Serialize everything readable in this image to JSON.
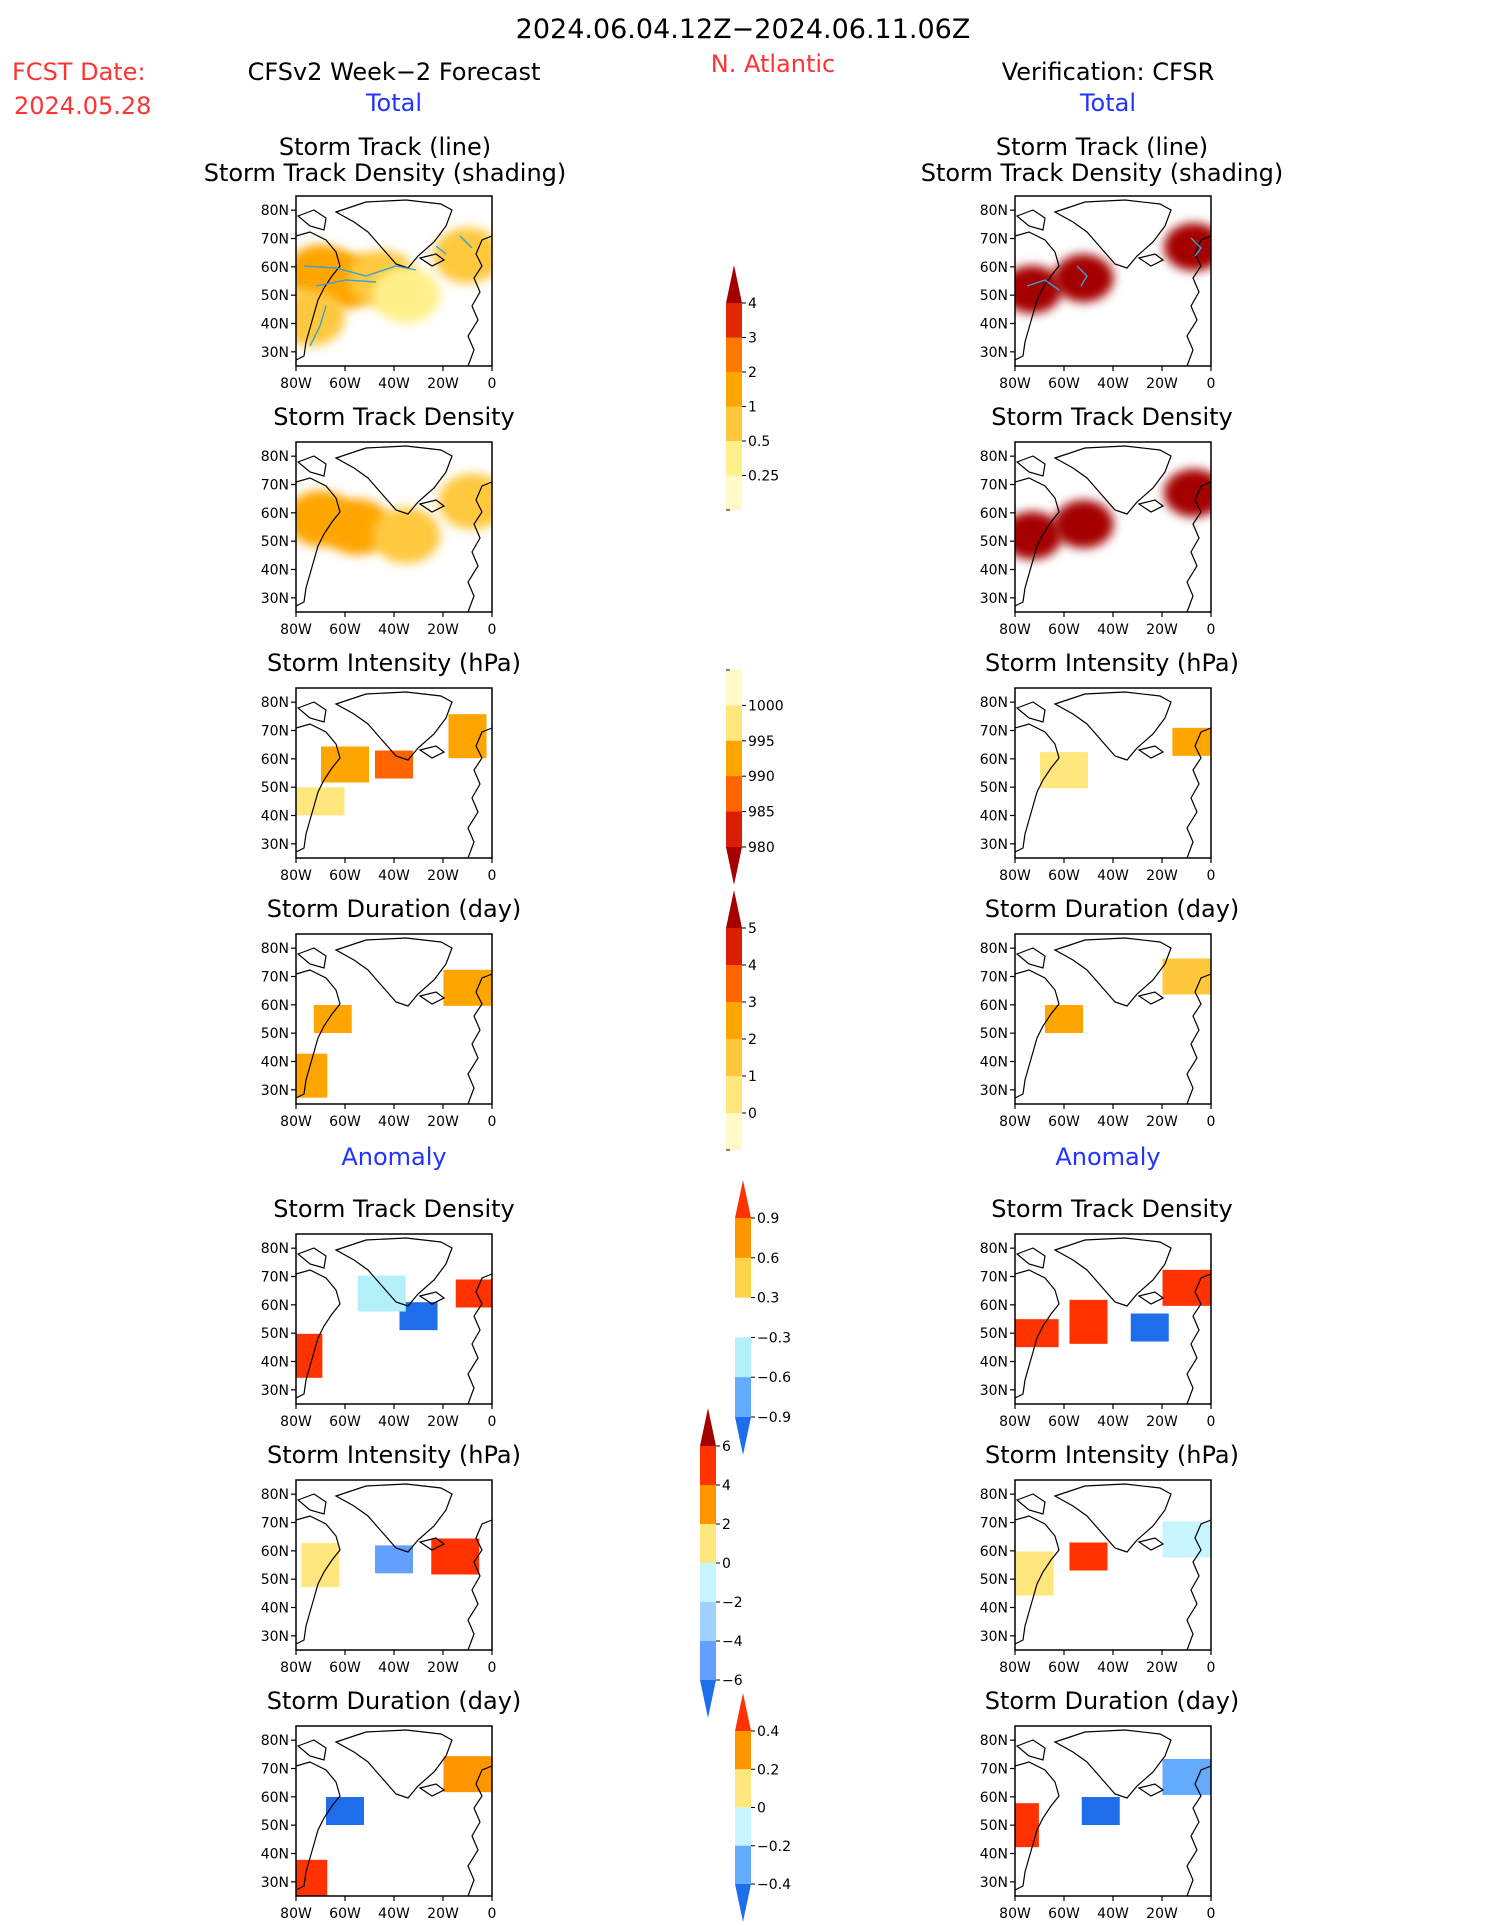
{
  "header": {
    "date_range": "2024.06.04.12Z−2024.06.11.06Z",
    "fcst_label": "FCST Date:",
    "fcst_date": "2024.05.28",
    "left_title": "CFSv2 Week−2 Forecast",
    "region": "N. Atlantic",
    "right_title": "Verification: CFSR",
    "total_label": "Total",
    "anomaly_label": "Anomaly"
  },
  "panel_titles": {
    "track_line": "Storm Track (line)",
    "track_shading": "Storm Track Density (shading)",
    "density": "Storm Track Density",
    "intensity": "Storm Intensity (hPa)",
    "duration": "Storm Duration (day)"
  },
  "axes": {
    "lat_ticks": [
      "80N",
      "70N",
      "60N",
      "50N",
      "40N",
      "30N"
    ],
    "lon_ticks": [
      "80W",
      "60W",
      "40W",
      "20W",
      "0"
    ]
  },
  "colorbars": [
    {
      "id": "density_total",
      "labels": [
        "4",
        "3",
        "2",
        "1",
        "0.5",
        "0.25"
      ],
      "colors": [
        "#a50000",
        "#e12800",
        "#ff7800",
        "#ffa500",
        "#ffc83c",
        "#fff08c",
        "#fffac8"
      ]
    },
    {
      "id": "intensity_total",
      "labels": [
        "1000",
        "995",
        "990",
        "985",
        "980"
      ],
      "colors": [
        "#fffac8",
        "#ffe67d",
        "#ffa500",
        "#ff6400",
        "#dc1e00",
        "#a50000"
      ]
    },
    {
      "id": "duration_total",
      "labels": [
        "5",
        "4",
        "3",
        "2",
        "1",
        "0"
      ],
      "colors": [
        "#a50000",
        "#dc1e00",
        "#ff6400",
        "#ffa500",
        "#ffc83c",
        "#ffe67d",
        "#fffac8"
      ]
    },
    {
      "id": "density_anom",
      "labels": [
        "0.9",
        "0.6",
        "0.3",
        "−0.3",
        "−0.6",
        "−0.9"
      ],
      "colors": [
        "#ff3200",
        "#ff9600",
        "#ffd24b",
        "#ffffff",
        "#b4f0fa",
        "#64aaff",
        "#1e6eeb"
      ]
    },
    {
      "id": "intensity_anom",
      "labels": [
        "6",
        "4",
        "2",
        "0",
        "−2",
        "−4",
        "−6"
      ],
      "colors": [
        "#a50000",
        "#ff3200",
        "#ff9600",
        "#ffe67d",
        "#c8f5ff",
        "#a0d2ff",
        "#64a0ff",
        "#1e6eeb"
      ]
    },
    {
      "id": "duration_anom",
      "labels": [
        "0.4",
        "0.2",
        "0",
        "−0.2",
        "−0.4"
      ],
      "colors": [
        "#ff3200",
        "#ff9600",
        "#ffe67d",
        "#c8f5ff",
        "#64aaff",
        "#1e6eeb"
      ]
    }
  ],
  "chart_data": [
    {
      "type": "heatmap",
      "id": "fcst_track",
      "title": "Storm Track (line) / Storm Track Density (shading)",
      "xlim": [
        -80,
        0
      ],
      "ylim": [
        25,
        85
      ],
      "regions": [
        {
          "lon": -70,
          "lat": 58,
          "value": 1.2
        },
        {
          "lon": -60,
          "lat": 55,
          "value": 1.0
        },
        {
          "lon": -45,
          "lat": 56,
          "value": 0.6
        },
        {
          "lon": -35,
          "lat": 50,
          "value": 0.4
        },
        {
          "lon": -10,
          "lat": 64,
          "value": 0.8
        },
        {
          "lon": -74,
          "lat": 42,
          "value": 0.9
        }
      ]
    },
    {
      "type": "heatmap",
      "id": "cfsr_track",
      "title": "Storm Track (line) / Storm Track Density (shading)",
      "xlim": [
        -80,
        0
      ],
      "ylim": [
        25,
        85
      ],
      "regions": [
        {
          "lon": -73,
          "lat": 52,
          "value": 4.5
        },
        {
          "lon": -52,
          "lat": 56,
          "value": 4.5
        },
        {
          "lon": -7,
          "lat": 67,
          "value": 4.5
        }
      ]
    },
    {
      "type": "heatmap",
      "id": "fcst_density",
      "title": "Storm Track Density",
      "xlim": [
        -80,
        0
      ],
      "ylim": [
        25,
        85
      ],
      "regions": [
        {
          "lon": -70,
          "lat": 58,
          "value": 1.2
        },
        {
          "lon": -55,
          "lat": 55,
          "value": 1.0
        },
        {
          "lon": -35,
          "lat": 52,
          "value": 0.6
        },
        {
          "lon": -8,
          "lat": 64,
          "value": 0.7
        }
      ]
    },
    {
      "type": "heatmap",
      "id": "cfsr_density",
      "title": "Storm Track Density",
      "xlim": [
        -80,
        0
      ],
      "ylim": [
        25,
        85
      ],
      "regions": [
        {
          "lon": -73,
          "lat": 52,
          "value": 4.5
        },
        {
          "lon": -52,
          "lat": 56,
          "value": 4.5
        },
        {
          "lon": -7,
          "lat": 67,
          "value": 4.5
        }
      ]
    },
    {
      "type": "heatmap",
      "id": "fcst_intensity",
      "title": "Storm Intensity (hPa)",
      "xlim": [
        -80,
        0
      ],
      "ylim": [
        25,
        85
      ],
      "regions": [
        {
          "lon": -40,
          "lat": 58,
          "value": 987
        },
        {
          "lon": -60,
          "lat": 58,
          "value": 993
        },
        {
          "lon": -10,
          "lat": 68,
          "value": 993
        },
        {
          "lon": -70,
          "lat": 45,
          "value": 998
        }
      ]
    },
    {
      "type": "heatmap",
      "id": "cfsr_intensity",
      "title": "Storm Intensity (hPa)",
      "xlim": [
        -80,
        0
      ],
      "ylim": [
        25,
        85
      ],
      "regions": [
        {
          "lon": -8,
          "lat": 66,
          "value": 993
        },
        {
          "lon": -60,
          "lat": 56,
          "value": 998
        }
      ]
    },
    {
      "type": "heatmap",
      "id": "fcst_duration",
      "title": "Storm Duration (day)",
      "xlim": [
        -80,
        0
      ],
      "ylim": [
        25,
        85
      ],
      "regions": [
        {
          "lon": -65,
          "lat": 55,
          "value": 2.5
        },
        {
          "lon": -10,
          "lat": 66,
          "value": 2.5
        },
        {
          "lon": -75,
          "lat": 35,
          "value": 2.0
        }
      ]
    },
    {
      "type": "heatmap",
      "id": "cfsr_duration",
      "title": "Storm Duration (day)",
      "xlim": [
        -80,
        0
      ],
      "ylim": [
        25,
        85
      ],
      "regions": [
        {
          "lon": -60,
          "lat": 55,
          "value": 2.3
        },
        {
          "lon": -10,
          "lat": 70,
          "value": 1.5
        }
      ]
    },
    {
      "type": "heatmap",
      "id": "fcst_density_anom",
      "title": "Storm Track Density",
      "xlim": [
        -80,
        0
      ],
      "ylim": [
        25,
        85
      ],
      "regions": [
        {
          "lon": -30,
          "lat": 56,
          "value": -0.95
        },
        {
          "lon": -45,
          "lat": 64,
          "value": -0.5
        },
        {
          "lon": -77,
          "lat": 42,
          "value": 0.9
        },
        {
          "lon": -5,
          "lat": 64,
          "value": 0.9
        }
      ]
    },
    {
      "type": "heatmap",
      "id": "cfsr_density_anom",
      "title": "Storm Track Density",
      "xlim": [
        -80,
        0
      ],
      "ylim": [
        25,
        85
      ],
      "regions": [
        {
          "lon": -25,
          "lat": 52,
          "value": -0.95
        },
        {
          "lon": -10,
          "lat": 66,
          "value": 0.95
        },
        {
          "lon": -50,
          "lat": 54,
          "value": 0.95
        },
        {
          "lon": -72,
          "lat": 50,
          "value": 0.95
        }
      ]
    },
    {
      "type": "heatmap",
      "id": "fcst_intensity_anom",
      "title": "Storm Intensity (hPa)",
      "xlim": [
        -80,
        0
      ],
      "ylim": [
        25,
        85
      ],
      "regions": [
        {
          "lon": -40,
          "lat": 57,
          "value": -5
        },
        {
          "lon": -15,
          "lat": 58,
          "value": 5
        },
        {
          "lon": -70,
          "lat": 55,
          "value": 1
        }
      ]
    },
    {
      "type": "heatmap",
      "id": "cfsr_intensity_anom",
      "title": "Storm Intensity (hPa)",
      "xlim": [
        -80,
        0
      ],
      "ylim": [
        25,
        85
      ],
      "regions": [
        {
          "lon": -50,
          "lat": 58,
          "value": 5
        },
        {
          "lon": -10,
          "lat": 64,
          "value": -1
        },
        {
          "lon": -72,
          "lat": 52,
          "value": 1
        }
      ]
    },
    {
      "type": "heatmap",
      "id": "fcst_duration_anom",
      "title": "Storm Duration (day)",
      "xlim": [
        -80,
        0
      ],
      "ylim": [
        25,
        85
      ],
      "regions": [
        {
          "lon": -60,
          "lat": 55,
          "value": -0.45
        },
        {
          "lon": -10,
          "lat": 68,
          "value": 0.3
        },
        {
          "lon": -75,
          "lat": 30,
          "value": 0.45
        }
      ]
    },
    {
      "type": "heatmap",
      "id": "cfsr_duration_anom",
      "title": "Storm Duration (day)",
      "xlim": [
        -80,
        0
      ],
      "ylim": [
        25,
        85
      ],
      "regions": [
        {
          "lon": -45,
          "lat": 55,
          "value": -0.45
        },
        {
          "lon": -10,
          "lat": 67,
          "value": -0.3
        },
        {
          "lon": -78,
          "lat": 50,
          "value": 0.4
        }
      ]
    }
  ]
}
